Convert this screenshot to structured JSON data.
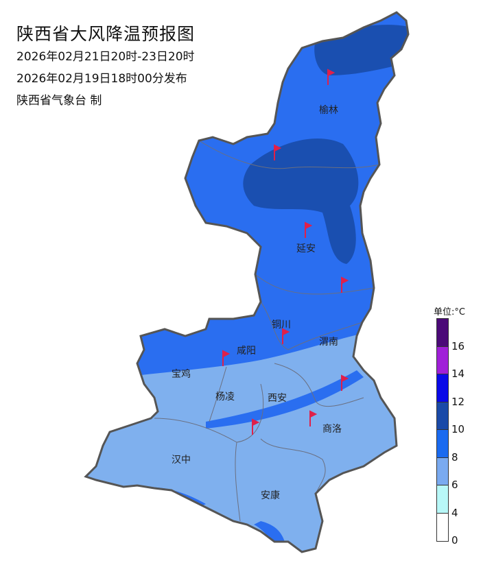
{
  "header": {
    "title": "陕西省大风降温预报图",
    "valid_period": "2026年02月21日20时-23日20时",
    "issued": "2026年02月19日18时00分发布",
    "producer": "陕西省气象台 制"
  },
  "map": {
    "cities": [
      "榆林",
      "延安",
      "铜川",
      "渭南",
      "咸阳",
      "宝鸡",
      "杨凌",
      "西安",
      "商洛",
      "汉中",
      "安康"
    ],
    "wind_flag_color": "#e0204a",
    "border_color": "#555555"
  },
  "legend": {
    "unit": "单位:°C",
    "ticks": [
      "16",
      "14",
      "12",
      "10",
      "8",
      "6",
      "4",
      "0"
    ],
    "colors": [
      "#4b0a78",
      "#a020d8",
      "#0a0ae8",
      "#1a4aa8",
      "#1a6af0",
      "#7aaaf0",
      "#b8f8f8",
      "#ffffff"
    ]
  }
}
